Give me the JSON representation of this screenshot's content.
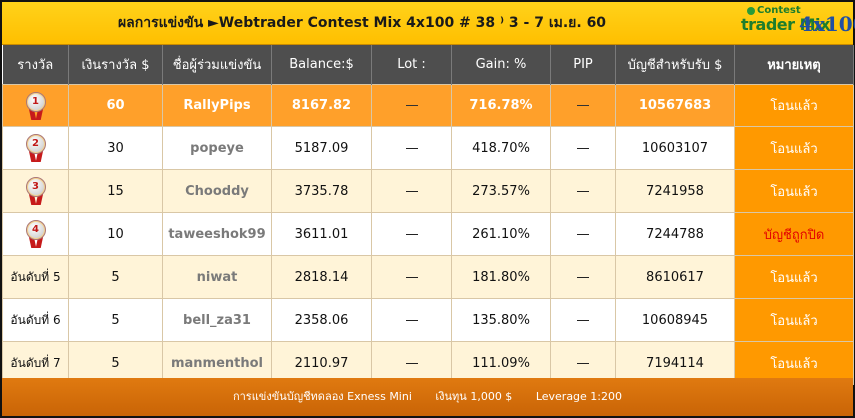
{
  "title": "ผลการแข่งขัน   ►Webtrader Contest Mix 4x100 # 38 ⁾ 3 - 7 เม.ย. 60",
  "logo": {
    "top": "Contest",
    "left": "trader Mix",
    "right": "4x100"
  },
  "headers": [
    "รางวัล",
    "เงินรางวัล $",
    "ชื่อผู้ร่วมแข่งขัน",
    "Balance:$",
    "Lot :",
    "Gain: %",
    "PIP",
    "บัญชีสำหรับรับ $",
    "หมายเหตุ"
  ],
  "rows": [
    {
      "rank": "1",
      "prize": "60",
      "name": "RallyPips",
      "balance": "8167.82",
      "gain": "716.78%",
      "account": "10567683",
      "remark": "โอนแล้ว"
    },
    {
      "rank": "2",
      "prize": "30",
      "name": "popeye",
      "balance": "5187.09",
      "gain": "418.70%",
      "account": "10603107",
      "remark": "โอนแล้ว"
    },
    {
      "rank": "3",
      "prize": "15",
      "name": "Chooddy",
      "balance": "3735.78",
      "gain": "273.57%",
      "account": "7241958",
      "remark": "โอนแล้ว"
    },
    {
      "rank": "4",
      "prize": "10",
      "name": "taweeshok99",
      "balance": "3611.01",
      "gain": "261.10%",
      "account": "7244788",
      "remark": "บัญชีถูกปิด"
    },
    {
      "rank": "อันดับที่ 5",
      "prize": "5",
      "name": "niwat",
      "balance": "2818.14",
      "gain": "181.80%",
      "account": "8610617",
      "remark": "โอนแล้ว"
    },
    {
      "rank": "อันดับที่ 6",
      "prize": "5",
      "name": "bell_za31",
      "balance": "2358.06",
      "gain": "135.80%",
      "account": "10608945",
      "remark": "โอนแล้ว"
    },
    {
      "rank": "อันดับที่ 7",
      "prize": "5",
      "name": "manmenthol",
      "balance": "2110.97",
      "gain": "111.09%",
      "account": "7194114",
      "remark": "โอนแล้ว"
    }
  ],
  "footer": {
    "contest": "การแข่งขันบัญชีทดลอง Exness Mini",
    "capital": "เงินทุน 1,000 $",
    "leverage": "Leverage 1:200"
  }
}
